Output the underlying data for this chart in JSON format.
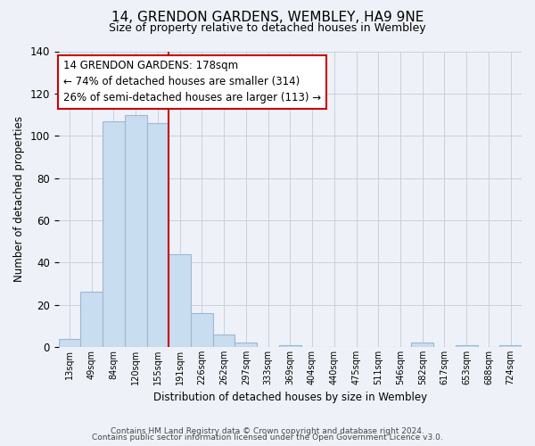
{
  "title": "14, GRENDON GARDENS, WEMBLEY, HA9 9NE",
  "subtitle": "Size of property relative to detached houses in Wembley",
  "xlabel": "Distribution of detached houses by size in Wembley",
  "ylabel": "Number of detached properties",
  "bar_labels": [
    "13sqm",
    "49sqm",
    "84sqm",
    "120sqm",
    "155sqm",
    "191sqm",
    "226sqm",
    "262sqm",
    "297sqm",
    "333sqm",
    "369sqm",
    "404sqm",
    "440sqm",
    "475sqm",
    "511sqm",
    "546sqm",
    "582sqm",
    "617sqm",
    "653sqm",
    "688sqm",
    "724sqm"
  ],
  "bar_values": [
    4,
    26,
    107,
    110,
    106,
    44,
    16,
    6,
    2,
    0,
    1,
    0,
    0,
    0,
    0,
    0,
    2,
    0,
    1,
    0,
    1
  ],
  "bar_color": "#c9ddf0",
  "bar_edge_color": "#9bb8d4",
  "vline_x_idx": 5,
  "vline_color": "#cc0000",
  "annotation_line1": "14 GRENDON GARDENS: 178sqm",
  "annotation_line2": "← 74% of detached houses are smaller (314)",
  "annotation_line3": "26% of semi-detached houses are larger (113) →",
  "annotation_box_color": "#ffffff",
  "annotation_box_edge": "#cc0000",
  "ylim": [
    0,
    140
  ],
  "yticks": [
    0,
    20,
    40,
    60,
    80,
    100,
    120,
    140
  ],
  "footer1": "Contains HM Land Registry data © Crown copyright and database right 2024.",
  "footer2": "Contains public sector information licensed under the Open Government Licence v3.0.",
  "bg_color": "#eef2f8",
  "plot_bg_color": "#eef2f8",
  "grid_color": "#c8d0dc"
}
